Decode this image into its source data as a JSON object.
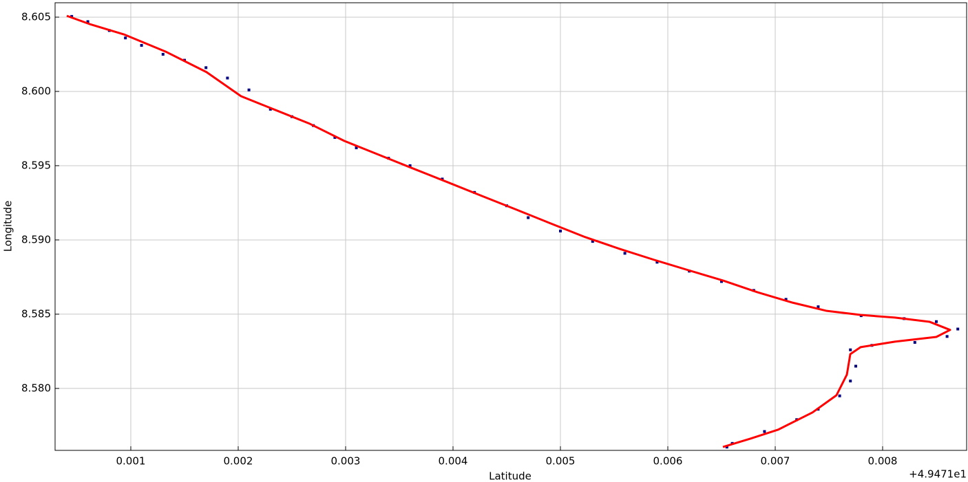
{
  "chart_data": {
    "type": "scatter",
    "xlabel": "Latitude",
    "ylabel": "Longitude",
    "x_offset_label": "+4.9471e1",
    "xlim": [
      0.000295,
      0.008782
    ],
    "ylim": [
      8.57583,
      8.60597
    ],
    "xticks": [
      0.001,
      0.002,
      0.003,
      0.004,
      0.005,
      0.006,
      0.007,
      0.008
    ],
    "yticks": [
      {
        "value": 8.58,
        "label": "8.580"
      },
      8.585,
      {
        "value": 8.59,
        "label": "8.590"
      },
      8.595,
      {
        "value": 8.6,
        "label": "8.600"
      },
      8.605
    ],
    "grid": true,
    "series": [
      {
        "mode": "markers",
        "color": "#000080",
        "x": [
          0.00045,
          0.0006,
          0.0008,
          0.00095,
          0.0011,
          0.0013,
          0.0015,
          0.0017,
          0.0019,
          0.0021,
          0.0023,
          0.0025,
          0.0027,
          0.0029,
          0.0031,
          0.0034,
          0.0036,
          0.0039,
          0.0042,
          0.0045,
          0.0047,
          0.005,
          0.0053,
          0.0056,
          0.0059,
          0.0062,
          0.0065,
          0.0068,
          0.0071,
          0.0074,
          0.0078,
          0.0082,
          0.0085,
          0.0087,
          0.0086,
          0.0083,
          0.0079,
          0.0077,
          0.00775,
          0.0077,
          0.0076,
          0.0074,
          0.0072,
          0.0069,
          0.0066,
          0.00655
        ],
        "values": [
          8.60505,
          8.6047,
          8.6041,
          8.6036,
          8.6031,
          8.6025,
          8.6021,
          8.6016,
          8.6009,
          8.6001,
          8.5988,
          8.5983,
          8.5977,
          8.5969,
          8.5962,
          8.5955,
          8.595,
          8.5941,
          8.5932,
          8.5923,
          8.5915,
          8.5906,
          8.5899,
          8.5891,
          8.5885,
          8.5879,
          8.5872,
          8.5866,
          8.586,
          8.5855,
          8.5849,
          8.5847,
          8.5845,
          8.584,
          8.5835,
          8.5831,
          8.5829,
          8.5826,
          8.5815,
          8.5805,
          8.5795,
          8.5786,
          8.5779,
          8.5771,
          8.5763,
          8.57605
        ]
      },
      {
        "mode": "line",
        "color": "#ff0000",
        "x": [
          0.000404,
          0.000615,
          0.000936,
          0.001321,
          0.001705,
          0.002026,
          0.002346,
          0.002667,
          0.002987,
          0.003308,
          0.003628,
          0.003949,
          0.004269,
          0.00459,
          0.00491,
          0.005231,
          0.005551,
          0.005872,
          0.006192,
          0.006513,
          0.006833,
          0.007154,
          0.007474,
          0.007795,
          0.008115,
          0.008436,
          0.008628,
          0.0085,
          0.008115,
          0.007795,
          0.007699,
          0.007667,
          0.00757,
          0.007346,
          0.007026,
          0.006769,
          0.006513
        ],
        "values": [
          8.60509,
          8.60454,
          8.60384,
          8.60269,
          8.6013,
          8.59968,
          8.59875,
          8.59782,
          8.59667,
          8.59574,
          8.59481,
          8.59389,
          8.59296,
          8.59204,
          8.59111,
          8.59019,
          8.5894,
          8.58866,
          8.58796,
          8.58727,
          8.58648,
          8.58579,
          8.58523,
          8.58495,
          8.58477,
          8.58449,
          8.58394,
          8.58347,
          8.58315,
          8.58278,
          8.58231,
          8.58093,
          8.57954,
          8.57838,
          8.57722,
          8.57662,
          8.57606
        ]
      }
    ]
  }
}
